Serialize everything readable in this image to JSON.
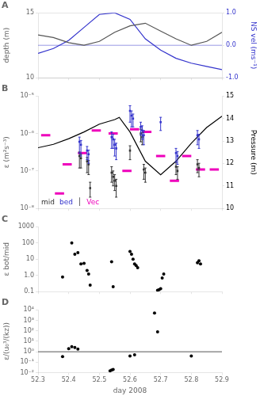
{
  "chart_data": [
    {
      "type": "line",
      "title": "A",
      "xlim": [
        52.3,
        52.9
      ],
      "xticks": [
        52.3,
        52.4,
        52.5,
        52.6,
        52.7,
        52.8,
        52.9
      ],
      "tick_labels": "y",
      "ylabel": "depth (m)",
      "ylim": [
        10,
        15
      ],
      "yticks": [
        10,
        15
      ],
      "y2label": "NS vel (ms⁻¹)",
      "y2lim": [
        -1.0,
        1.0
      ],
      "y2ticks": [
        {
          "value": -1.0,
          "label": "-1.0"
        },
        {
          "value": 0.0,
          "label": "0.0"
        },
        {
          "value": 1.0,
          "label": "1.0"
        }
      ],
      "grid": "y",
      "series": [
        {
          "type": "line",
          "color": "#555555",
          "x": [
            52.3,
            52.35,
            52.4,
            52.45,
            52.5,
            52.55,
            52.6,
            52.65,
            52.7,
            52.75,
            52.8,
            52.85,
            52.9
          ],
          "values": [
            13.3,
            13.1,
            12.7,
            12.5,
            12.8,
            13.5,
            14.0,
            14.2,
            13.6,
            13.0,
            12.5,
            12.8,
            13.5
          ]
        },
        {
          "type": "line",
          "axis": "y2",
          "color": "#3333cc",
          "x": [
            52.3,
            52.35,
            52.4,
            52.45,
            52.5,
            52.55,
            52.6,
            52.65,
            52.7,
            52.75,
            52.8,
            52.85,
            52.9
          ],
          "values": [
            -0.25,
            -0.1,
            0.15,
            0.55,
            0.95,
            1.0,
            0.8,
            0.2,
            -0.15,
            -0.4,
            -0.55,
            -0.65,
            -0.75
          ]
        },
        {
          "type": "hline",
          "axis": "y2",
          "color": "#3333cc",
          "values": [
            0.0
          ]
        }
      ]
    },
    {
      "type": "scatter",
      "title": "B",
      "log": "y",
      "xlim": [
        52.3,
        52.9
      ],
      "xticks": [
        52.3,
        52.4,
        52.5,
        52.6,
        52.7,
        52.8,
        52.9
      ],
      "tick_labels": "y",
      "ylabel": "ε (m²s⁻³)",
      "ylim": [
        1e-08,
        1e-05
      ],
      "yticks": [
        {
          "value": 1e-08,
          "label": "10⁻⁸"
        },
        {
          "value": 1e-07,
          "label": "10⁻⁷"
        },
        {
          "value": 1e-06,
          "label": "10⁻⁶"
        },
        {
          "value": 1e-05,
          "label": "10⁻⁵"
        }
      ],
      "y2label": "Pressure (m)",
      "y2lim": [
        10,
        15
      ],
      "y2ticks": [
        10,
        11,
        12,
        13,
        14,
        15
      ],
      "grid": false,
      "legend": "lower left",
      "annotations": [
        {
          "text": "│",
          "color": "#333333"
        }
      ],
      "series": [
        {
          "name": "mid",
          "type": "scatter",
          "marker": "square",
          "color": "#333333",
          "x": [
            52.435,
            52.44,
            52.46,
            52.465,
            52.47,
            52.54,
            52.545,
            52.55,
            52.555,
            52.6,
            52.635,
            52.64,
            52.645,
            52.65,
            52.75,
            52.755,
            52.82,
            52.825
          ],
          "values": [
            2.5e-07,
            2.2e-07,
            1.8e-07,
            1.5e-07,
            3.5e-08,
            9e-08,
            7e-08,
            5.5e-08,
            4e-08,
            3.5e-07,
            1e-06,
            8e-07,
            1.1e-07,
            9e-08,
            1.3e-07,
            1e-07,
            1.5e-07,
            1.2e-07
          ],
          "yerr_lo": [
            1.3e-07,
            1e-07,
            9e-08,
            7e-08,
            1.5e-08,
            4e-08,
            3e-08,
            2.5e-08,
            2e-08,
            1.5e-07,
            4e-07,
            3e-07,
            5e-08,
            4e-08,
            5e-08,
            4e-08,
            6e-08,
            5e-08
          ],
          "yerr_hi": [
            7e-08,
            6e-08,
            5e-08,
            4e-08,
            1.5e-08,
            4e-08,
            3e-08,
            2.5e-08,
            2e-08,
            1.2e-07,
            3e-07,
            2.5e-07,
            4e-08,
            3e-08,
            4e-08,
            3e-08,
            5e-08,
            4e-08
          ]
        },
        {
          "name": "bed",
          "type": "scatter",
          "marker": "square",
          "color": "#3333cc",
          "x": [
            52.435,
            52.44,
            52.46,
            52.465,
            52.54,
            52.545,
            52.55,
            52.555,
            52.6,
            52.605,
            52.61,
            52.635,
            52.64,
            52.645,
            52.7,
            52.75,
            52.755,
            52.82,
            52.825
          ],
          "values": [
            6e-07,
            5e-07,
            3.5e-07,
            2.8e-07,
            8e-07,
            7e-07,
            5e-07,
            4e-07,
            4e-06,
            3e-06,
            2.5e-06,
            1.5e-06,
            1.2e-06,
            9e-07,
            2e-06,
            3e-07,
            2.5e-07,
            9e-07,
            7e-07
          ],
          "yerr_lo": [
            3e-07,
            2.5e-07,
            1.5e-07,
            1.2e-07,
            4e-07,
            3e-07,
            2.5e-07,
            2e-07,
            2e-06,
            1.5e-06,
            1e-06,
            6e-07,
            5e-07,
            4e-07,
            8e-07,
            1.3e-07,
            1e-07,
            4e-07,
            3e-07
          ],
          "yerr_hi": [
            2e-07,
            1.5e-07,
            1e-07,
            8e-08,
            3e-07,
            2.5e-07,
            2e-07,
            1.5e-07,
            1.5e-06,
            1e-06,
            8e-07,
            5e-07,
            4e-07,
            3e-07,
            7e-07,
            1e-07,
            8e-08,
            3e-07,
            2.5e-07
          ]
        },
        {
          "name": "Vec",
          "type": "segments",
          "color": "#ee00bb",
          "segments": [
            {
              "x": [
                52.31,
                52.34
              ],
              "y": 9e-07
            },
            {
              "x": [
                52.355,
                52.385
              ],
              "y": 2.5e-08
            },
            {
              "x": [
                52.38,
                52.41
              ],
              "y": 1.5e-07
            },
            {
              "x": [
                52.43,
                52.46
              ],
              "y": 3e-07
            },
            {
              "x": [
                52.475,
                52.505
              ],
              "y": 1.2e-06
            },
            {
              "x": [
                52.53,
                52.56
              ],
              "y": 1e-06
            },
            {
              "x": [
                52.575,
                52.605
              ],
              "y": 1e-07
            },
            {
              "x": [
                52.6,
                52.63
              ],
              "y": 1.3e-06
            },
            {
              "x": [
                52.64,
                52.67
              ],
              "y": 1.1e-06
            },
            {
              "x": [
                52.685,
                52.715
              ],
              "y": 2.5e-07
            },
            {
              "x": [
                52.73,
                52.76
              ],
              "y": 5.5e-08
            },
            {
              "x": [
                52.77,
                52.8
              ],
              "y": 2.5e-07
            },
            {
              "x": [
                52.815,
                52.845
              ],
              "y": 1.1e-07
            },
            {
              "x": [
                52.86,
                52.89
              ],
              "y": 1.1e-07
            }
          ]
        },
        {
          "type": "line",
          "axis": "y2",
          "color": "#000000",
          "x": [
            52.3,
            52.35,
            52.4,
            52.45,
            52.5,
            52.55,
            52.565,
            52.6,
            52.65,
            52.7,
            52.75,
            52.8,
            52.85,
            52.9
          ],
          "values": [
            12.7,
            12.85,
            13.1,
            13.4,
            13.75,
            13.95,
            14.05,
            13.4,
            12.1,
            11.5,
            12.1,
            12.9,
            13.6,
            14.1
          ]
        }
      ]
    },
    {
      "type": "scatter",
      "title": "C",
      "log": "y",
      "xlim": [
        52.3,
        52.9
      ],
      "xticks": [
        52.3,
        52.4,
        52.5,
        52.6,
        52.7,
        52.8,
        52.9
      ],
      "tick_labels": "y",
      "ylabel": "ε bot/mid",
      "ylim": [
        0.1,
        1000.0
      ],
      "yticks": [
        0.1,
        {
          "value": 1.0,
          "label": "1.0"
        },
        10,
        100,
        1000
      ],
      "grid": false,
      "series": [
        {
          "type": "scatter",
          "marker": "circle",
          "color": "#000000",
          "x": [
            52.38,
            52.41,
            52.42,
            52.43,
            52.44,
            52.45,
            52.46,
            52.465,
            52.47,
            52.54,
            52.545,
            52.6,
            52.605,
            52.61,
            52.615,
            52.62,
            52.625,
            52.69,
            52.695,
            52.7,
            52.705,
            52.71,
            52.82,
            52.825,
            52.83
          ],
          "values": [
            0.8,
            100.0,
            20.0,
            25.0,
            5.0,
            5.5,
            2.0,
            1.2,
            0.25,
            7.0,
            0.2,
            30.0,
            20.0,
            10.0,
            5.0,
            4.0,
            3.0,
            0.12,
            0.13,
            0.15,
            0.7,
            1.2,
            6.0,
            8.0,
            5.0
          ]
        }
      ]
    },
    {
      "type": "scatter",
      "title": "D",
      "log": "y",
      "xlabel": "day 2008",
      "xlim": [
        52.3,
        52.9
      ],
      "xticks": [
        52.3,
        52.4,
        52.5,
        52.6,
        52.7,
        52.8,
        52.9
      ],
      "ylabel": "ε/(u₀³/(kz))",
      "ylim": [
        0.01,
        10000
      ],
      "yticks": [
        {
          "value": 0.01,
          "label": "10⁻²"
        },
        {
          "value": 0.1,
          "label": "10⁻¹"
        },
        {
          "value": 1,
          "label": "10⁰"
        },
        {
          "value": 10,
          "label": "10¹"
        },
        {
          "value": 100,
          "label": "10²"
        },
        {
          "value": 1000,
          "label": "10³"
        },
        {
          "value": 10000,
          "label": "10⁴"
        }
      ],
      "grid": false,
      "series": [
        {
          "type": "hline",
          "color": "#555555",
          "values": [
            1.0
          ]
        },
        {
          "type": "scatter",
          "marker": "circle",
          "color": "#000000",
          "x": [
            52.38,
            52.4,
            52.41,
            52.42,
            52.43,
            52.535,
            52.54,
            52.545,
            52.6,
            52.615,
            52.68,
            52.69,
            52.8
          ],
          "values": [
            0.35,
            2.0,
            3.0,
            2.5,
            1.8,
            0.015,
            0.018,
            0.02,
            0.4,
            0.5,
            5000.0,
            80.0,
            0.4
          ]
        }
      ]
    }
  ]
}
